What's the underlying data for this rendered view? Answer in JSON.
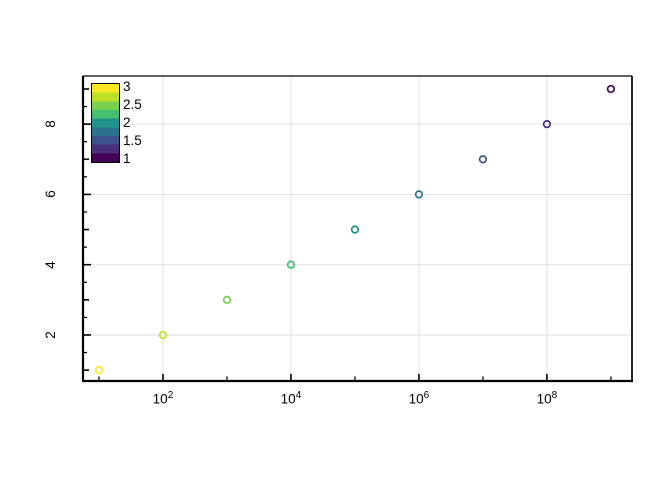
{
  "chart_data": {
    "type": "scatter",
    "title": "",
    "xlabel": "",
    "ylabel": "",
    "x_scale": "log10",
    "x": [
      10,
      100,
      1000,
      10000,
      100000,
      1000000,
      10000000,
      100000000,
      1000000000
    ],
    "y": [
      1,
      2,
      3,
      4,
      5,
      6,
      7,
      8,
      9
    ],
    "color_values": [
      3,
      2.75,
      2.5,
      2.25,
      2,
      1.75,
      1.5,
      1.25,
      1
    ],
    "marker": "open-circle",
    "marker_colors": [
      "#FDE725",
      "#BDDF26",
      "#7AD151",
      "#44BF70",
      "#21918C",
      "#2C728E",
      "#3B528B",
      "#472D7B",
      "#440154"
    ],
    "xlim_log10": [
      0.75,
      9.33
    ],
    "ylim": [
      0.69,
      9.37
    ],
    "x_tick_base": "10",
    "x_major_tick_exponents": [
      2,
      4,
      6,
      8
    ],
    "x_minor_tick_exponents": [
      1,
      3,
      5,
      7,
      9
    ],
    "x_tick_labels": [
      {
        "base": "10",
        "exp": "2"
      },
      {
        "base": "10",
        "exp": "4"
      },
      {
        "base": "10",
        "exp": "6"
      },
      {
        "base": "10",
        "exp": "8"
      }
    ],
    "y_major_ticks": [
      1,
      2,
      3,
      4,
      5,
      6,
      7,
      8,
      9
    ],
    "y_minor_ticks": [
      1.5,
      2.5,
      3.5,
      4.5,
      5.5,
      6.5,
      7.5,
      8.5
    ],
    "y_labeled_ticks": [
      2,
      4,
      6,
      8
    ],
    "y_tick_labels": [
      "2",
      "4",
      "6",
      "8"
    ],
    "grid": {
      "on": true,
      "color": "#e5e5e5",
      "x_at_exponents": [
        2,
        4,
        6,
        8
      ],
      "y_at": [
        2,
        4,
        6,
        8
      ]
    },
    "axis_color": "#000000",
    "background_color": "#ffffff",
    "legend_position": "top-left-inside",
    "colorbar": {
      "orientation": "vertical",
      "min": 1,
      "max": 3,
      "tick_labels": [
        "3",
        "2.5",
        "2",
        "1.5",
        "1"
      ],
      "tick_values": [
        3,
        2.5,
        2,
        1.5,
        1
      ],
      "band_values_top_to_bottom": [
        3,
        2.75,
        2.5,
        2.25,
        2,
        1.75,
        1.5,
        1.25,
        1
      ],
      "band_colors_top_to_bottom": [
        "#FDE725",
        "#BDDF26",
        "#7AD151",
        "#44BF70",
        "#21918C",
        "#2C728E",
        "#3B528B",
        "#472D7B",
        "#440154"
      ],
      "colormap": "viridis"
    }
  }
}
